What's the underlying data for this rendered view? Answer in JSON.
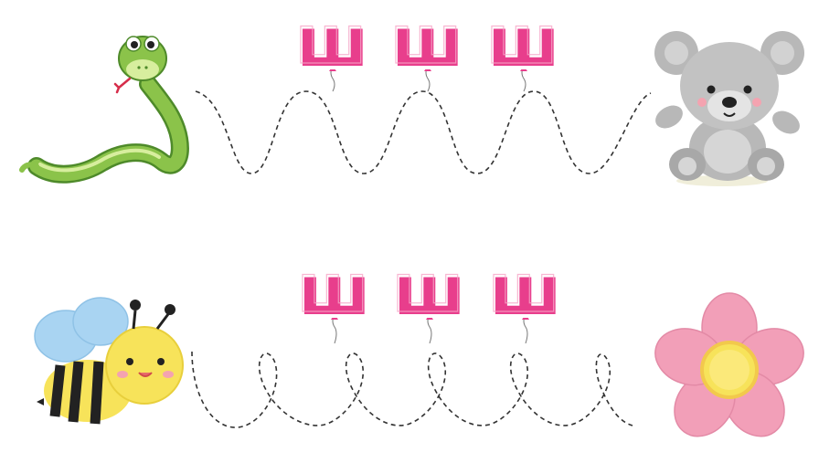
{
  "worksheet": {
    "row1": {
      "letters": [
        "ш",
        "ш",
        "ш"
      ],
      "start_picture": "snake",
      "end_picture": "teddy-bear",
      "path_style": "waves"
    },
    "row2": {
      "letters": [
        "ш",
        "ш",
        "ш"
      ],
      "start_picture": "bee",
      "end_picture": "flower",
      "path_style": "loops"
    }
  },
  "colors": {
    "balloon": "#e83e8c",
    "balloon_light": "#f7a6c8",
    "path": "#333333",
    "snake": "#8bc34a",
    "snake_dark": "#4e8a2a",
    "bear": "#b8b8b8",
    "bear_light": "#dcdcdc",
    "bee_yellow": "#f7e35a",
    "bee_stripe": "#222222",
    "bee_wing": "#a9d4f2",
    "flower_petal": "#f29fb8",
    "flower_center": "#f7e35a"
  }
}
